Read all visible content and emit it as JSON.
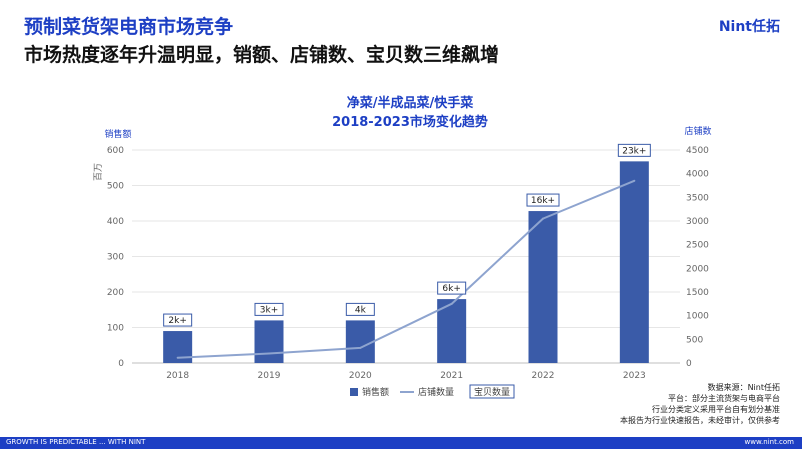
{
  "header": {
    "title": "预制菜货架电商市场竞争",
    "subtitle": "市场热度逐年升温明显，销额、店铺数、宝贝数三维飙增",
    "logo": "Nint任拓"
  },
  "chart_data": {
    "type": "bar",
    "title": "净菜/半成品菜/快手菜",
    "subtitle": "2018-2023市场变化趋势",
    "categories": [
      "2018",
      "2019",
      "2020",
      "2021",
      "2022",
      "2023"
    ],
    "series": [
      {
        "name": "销售额",
        "type": "bar",
        "axis": "left",
        "values": [
          90,
          120,
          120,
          180,
          428,
          568
        ]
      },
      {
        "name": "店铺数量",
        "type": "line",
        "axis": "right",
        "values": [
          110,
          200,
          320,
          1250,
          3050,
          3850
        ]
      },
      {
        "name": "宝贝数量",
        "type": "label",
        "labels": [
          "2k+",
          "3k+",
          "4k",
          "6k+",
          "16k+",
          "23k+"
        ]
      }
    ],
    "y_left": {
      "label": "销售额",
      "unit": "百万",
      "min": 0,
      "max": 600,
      "ticks": [
        0,
        100,
        200,
        300,
        400,
        500,
        600
      ]
    },
    "y_right": {
      "label": "店铺数",
      "min": 0,
      "max": 4500,
      "ticks": [
        0,
        500,
        1000,
        1500,
        2000,
        2500,
        3000,
        3500,
        4000,
        4500
      ]
    },
    "grid": true,
    "legend": "bottom",
    "colors": {
      "bar": "#3a5ba8",
      "line": "#8ea4cf",
      "label_border": "#3a5ba8"
    }
  },
  "source": {
    "lines": [
      "数据来源：Nint任拓",
      "平台：部分主流货架与电商平台",
      "行业分类定义采用平台自有划分基准",
      "本报告为行业快速报告，未经审计，仅供参考"
    ]
  },
  "footer": {
    "left": "GROWTH IS PREDICTABLE ... WITH NINT",
    "right": "www.nint.com"
  }
}
